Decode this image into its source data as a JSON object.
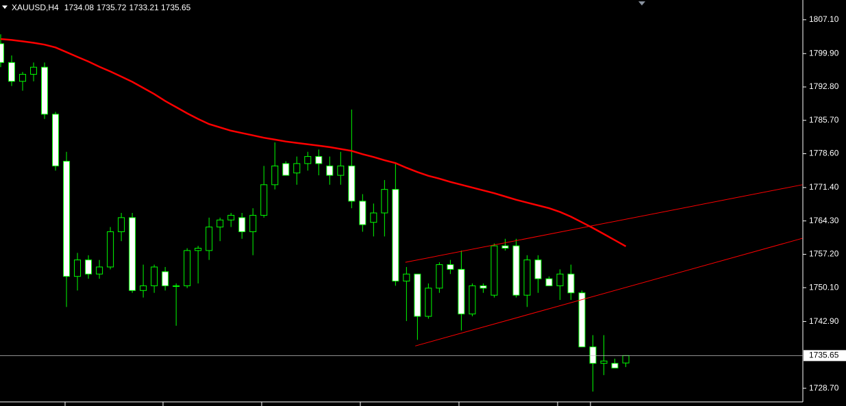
{
  "chart_data": {
    "type": "candlestick",
    "symbol": "XAUUSD,H4",
    "categories": [
      null,
      null,
      null,
      null,
      null,
      null,
      null,
      null,
      null,
      null,
      null,
      null,
      null,
      null,
      null,
      null,
      null,
      null,
      null,
      null,
      null,
      null,
      null,
      null,
      null,
      null,
      null,
      null,
      null,
      null,
      null,
      null,
      null,
      null,
      null,
      null,
      null,
      null,
      null,
      null,
      null,
      null,
      null,
      null,
      null,
      null,
      null,
      null,
      null,
      null,
      null,
      null,
      null,
      null,
      null,
      null,
      null,
      null
    ],
    "open": [
      1802,
      1798,
      1794,
      1795.5,
      1797,
      1787,
      1777,
      1752.5,
      1756,
      1753,
      1754.5,
      1762,
      1765,
      1749.5,
      1750.5,
      1753.5,
      1750.5,
      1750.5,
      1758,
      1758,
      1763,
      1764.5,
      1765,
      1762,
      1765.5,
      1772,
      1776.5,
      1774.5,
      1776.5,
      1778,
      1776,
      1774,
      1776,
      1768.5,
      1764,
      1766,
      1771,
      1751.5,
      1753,
      1744,
      1750,
      1755,
      1754,
      1744.5,
      1750.5,
      1748.5,
      1759,
      1759,
      1748.5,
      1756,
      1752,
      1750.5,
      1753,
      1749,
      1737.5,
      1734,
      1734,
      1734.08
    ],
    "high": [
      1804,
      1799.5,
      1796,
      1798,
      1798,
      1787.5,
      1779,
      1757.5,
      1757,
      1756,
      1763,
      1766,
      1766,
      1755,
      1755,
      1754.5,
      1751,
      1758.5,
      1759,
      1765,
      1765,
      1766,
      1766,
      1767,
      1776,
      1781,
      1777,
      1778,
      1779,
      1779.5,
      1778,
      1779,
      1788,
      1770,
      1768,
      1773,
      1776.5,
      1754.5,
      1753,
      1751,
      1755.5,
      1756,
      1758,
      1751,
      1751,
      1759.5,
      1760.5,
      1760.5,
      1757,
      1757,
      1752.5,
      1754,
      1755,
      1749.5,
      1740,
      1740,
      1735,
      1735.72
    ],
    "low": [
      1797,
      1793,
      1792,
      1794,
      1786,
      1775,
      1746,
      1749.5,
      1752,
      1752,
      1754,
      1760,
      1749,
      1748,
      1749,
      1749.5,
      1742,
      1750,
      1751,
      1756,
      1760,
      1763,
      1760.5,
      1757,
      1765,
      1771,
      1774,
      1772,
      1775,
      1774,
      1772,
      1772,
      1767,
      1762,
      1761,
      1761,
      1750.5,
      1743,
      1739,
      1743.5,
      1749,
      1753,
      1741,
      1744,
      1749,
      1748,
      1758,
      1748,
      1746,
      1749,
      1750.5,
      1747.5,
      1747.5,
      1737.5,
      1728,
      1731.5,
      1733,
      1733.21
    ],
    "close": [
      1798,
      1794,
      1795.5,
      1797,
      1787,
      1776,
      1752.5,
      1756,
      1753,
      1754.5,
      1762,
      1765,
      1749.5,
      1750.5,
      1754.5,
      1750.5,
      1750.5,
      1758,
      1758.5,
      1763,
      1764.5,
      1765.5,
      1762,
      1765.5,
      1772,
      1776,
      1774,
      1776.5,
      1778,
      1776.5,
      1774,
      1776,
      1768.5,
      1763.5,
      1766,
      1771,
      1751.5,
      1753,
      1744,
      1750,
      1755,
      1754,
      1744.5,
      1750.5,
      1750,
      1759,
      1758.5,
      1748.5,
      1756,
      1752,
      1750.5,
      1753,
      1749,
      1737.5,
      1734,
      1734.5,
      1733,
      1735.65
    ],
    "moving_average": {
      "color": "#ff0000",
      "values": [
        1803.0,
        1802.8,
        1802.5,
        1802.2,
        1801.8,
        1801.2,
        1800.2,
        1799.2,
        1798.2,
        1797.1,
        1796.1,
        1795.0,
        1793.9,
        1792.6,
        1791.3,
        1789.8,
        1788.5,
        1787.2,
        1786.0,
        1784.9,
        1784.2,
        1783.5,
        1783.0,
        1782.5,
        1782.0,
        1781.6,
        1781.2,
        1780.9,
        1780.6,
        1780.3,
        1780.0,
        1779.6,
        1779.2,
        1778.5,
        1777.9,
        1777.2,
        1776.6,
        1775.6,
        1774.7,
        1773.9,
        1773.3,
        1772.6,
        1772.0,
        1771.4,
        1770.8,
        1770.2,
        1769.5,
        1768.8,
        1768.2,
        1767.6,
        1767.0,
        1766.2,
        1765.2,
        1764.0,
        1762.8,
        1761.5,
        1760.2,
        1758.9
      ]
    },
    "trendlines": [
      {
        "color": "#ff0000",
        "start": [
          36.9,
          1755.5
        ],
        "end": [
          73.1,
          1772.0
        ]
      },
      {
        "color": "#ff0000",
        "start": [
          37.8,
          1737.7
        ],
        "end": [
          73.1,
          1760.6
        ]
      }
    ],
    "bull_color": "#000000",
    "bear_color": "#ffffff",
    "outline_color": "#00ff00",
    "ylim": [
      1725.8,
      1811.3
    ],
    "yticks": [
      {
        "value": 1807.1,
        "label": "1807.10"
      },
      {
        "value": 1799.9,
        "label": "1799.90"
      },
      {
        "value": 1792.8,
        "label": "1792.80"
      },
      {
        "value": 1785.7,
        "label": "1785.70"
      },
      {
        "value": 1778.6,
        "label": "1778.60"
      },
      {
        "value": 1771.4,
        "label": "1771.40"
      },
      {
        "value": 1764.3,
        "label": "1764.30"
      },
      {
        "value": 1757.2,
        "label": "1757.20"
      },
      {
        "value": 1750.1,
        "label": "1750.10"
      },
      {
        "value": 1742.9,
        "label": "1742.90"
      },
      {
        "value": 1728.7,
        "label": "1728.70"
      }
    ]
  }
}
